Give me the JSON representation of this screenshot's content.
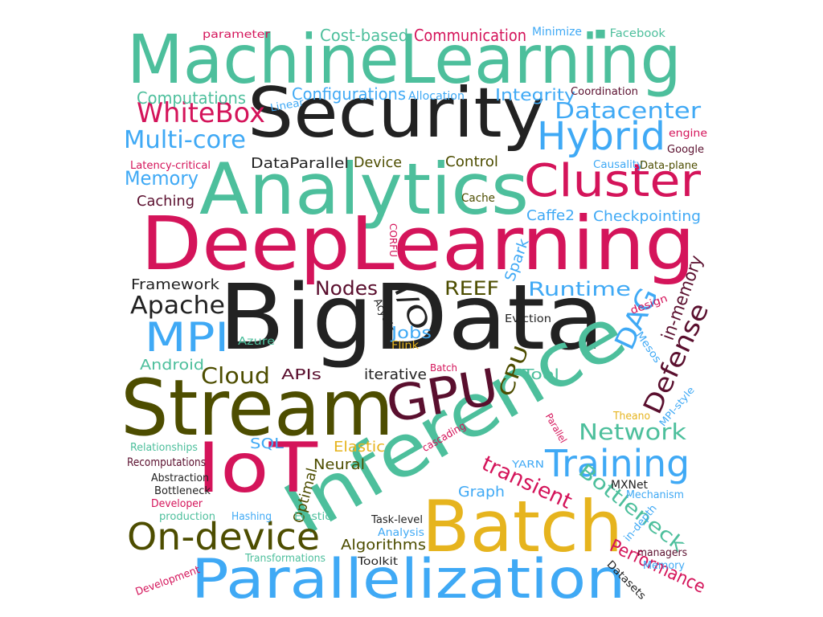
{
  "colors": {
    "teal": "#4dbf9c",
    "black": "#222222",
    "magenta": "#d4145a",
    "blue": "#3fa9f5",
    "olive": "#4d4d00",
    "maroon": "#5a0f2e",
    "gold": "#e6b41e"
  },
  "words": [
    {
      "id": "machinelearning",
      "text": "MachineLearning",
      "color": "teal"
    },
    {
      "id": "security",
      "text": "Security",
      "color": "black"
    },
    {
      "id": "analytics",
      "text": "Analytics",
      "color": "teal"
    },
    {
      "id": "deeplearning",
      "text": "DeepLearning",
      "color": "magenta"
    },
    {
      "id": "bigdata",
      "text": "BigData",
      "color": "black"
    },
    {
      "id": "stream",
      "text": "Stream",
      "color": "olive"
    },
    {
      "id": "inference",
      "text": "Inference",
      "color": "teal"
    },
    {
      "id": "batch",
      "text": "Batch",
      "color": "gold"
    },
    {
      "id": "parallelization",
      "text": "Parallelization",
      "color": "blue"
    },
    {
      "id": "iot",
      "text": "IoT",
      "color": "magenta"
    },
    {
      "id": "gpu",
      "text": "GPU",
      "color": "maroon"
    },
    {
      "id": "cluster",
      "text": "Cluster",
      "color": "magenta"
    },
    {
      "id": "hybrid",
      "text": "Hybrid",
      "color": "blue"
    },
    {
      "id": "mpi",
      "text": "MPI",
      "color": "blue"
    },
    {
      "id": "on-device",
      "text": "On-device",
      "color": "olive"
    },
    {
      "id": "training",
      "text": "Training",
      "color": "blue"
    },
    {
      "id": "whitebox",
      "text": "WhiteBox",
      "color": "magenta"
    },
    {
      "id": "multi-core",
      "text": "Multi-core",
      "color": "blue"
    },
    {
      "id": "datacenter",
      "text": "Datacenter",
      "color": "blue"
    },
    {
      "id": "apache",
      "text": "Apache",
      "color": "black"
    },
    {
      "id": "cloud",
      "text": "Cloud",
      "color": "olive"
    },
    {
      "id": "network",
      "text": "Network",
      "color": "teal"
    },
    {
      "id": "defense",
      "text": "Defense",
      "color": "maroon"
    },
    {
      "id": "dag",
      "text": "DAG",
      "color": "blue"
    },
    {
      "id": "bottleneck-big",
      "text": "Bottleneck",
      "color": "teal"
    },
    {
      "id": "transient",
      "text": "transient",
      "color": "magenta"
    },
    {
      "id": "memory",
      "text": "Memory",
      "color": "blue"
    },
    {
      "id": "nodes",
      "text": "Nodes",
      "color": "maroon"
    },
    {
      "id": "reef",
      "text": "REEF",
      "color": "olive"
    },
    {
      "id": "runtime",
      "text": "Runtime",
      "color": "blue"
    },
    {
      "id": "io",
      "text": "I/O",
      "color": "black"
    },
    {
      "id": "jobs",
      "text": "Jobs",
      "color": "blue"
    },
    {
      "id": "cpu",
      "text": "CPU",
      "color": "olive"
    },
    {
      "id": "in-memory",
      "text": "in-memory",
      "color": "maroon"
    },
    {
      "id": "performance",
      "text": "Performance",
      "color": "magenta"
    },
    {
      "id": "computations",
      "text": "Computations",
      "color": "teal"
    },
    {
      "id": "configurations",
      "text": "Configurations",
      "color": "blue"
    },
    {
      "id": "integrity",
      "text": "Integrity",
      "color": "blue"
    },
    {
      "id": "cost-based",
      "text": "Cost-based",
      "color": "teal"
    },
    {
      "id": "communication",
      "text": "Communication",
      "color": "magenta"
    },
    {
      "id": "minimize",
      "text": "Minimize",
      "color": "blue"
    },
    {
      "id": "facebook",
      "text": "■ Facebook",
      "color": "teal"
    },
    {
      "id": "parameter",
      "text": "parameter",
      "color": "magenta"
    },
    {
      "id": "allocation",
      "text": "Allocation",
      "color": "blue"
    },
    {
      "id": "coordination",
      "text": "Coordination",
      "color": "maroon"
    },
    {
      "id": "linear",
      "text": "Linear",
      "color": "blue"
    },
    {
      "id": "engine",
      "text": "engine",
      "color": "magenta"
    },
    {
      "id": "google",
      "text": "Google",
      "color": "maroon"
    },
    {
      "id": "latency",
      "text": "Latency-critical",
      "color": "magenta"
    },
    {
      "id": "dataparallel",
      "text": "DataParallel",
      "color": "black"
    },
    {
      "id": "device",
      "text": "Device",
      "color": "olive"
    },
    {
      "id": "control",
      "text": "Control",
      "color": "olive"
    },
    {
      "id": "causality",
      "text": "Causality",
      "color": "blue"
    },
    {
      "id": "data-plane",
      "text": "Data-plane",
      "color": "olive"
    },
    {
      "id": "caching",
      "text": "Caching",
      "color": "maroon"
    },
    {
      "id": "cache",
      "text": "Cache",
      "color": "olive"
    },
    {
      "id": "caffe2",
      "text": "Caffe2",
      "color": "blue"
    },
    {
      "id": "checkpointing",
      "text": "Checkpointing",
      "color": "blue"
    },
    {
      "id": "corfu",
      "text": "CORFU",
      "color": "magenta"
    },
    {
      "id": "spark",
      "text": "Spark",
      "color": "blue"
    },
    {
      "id": "framework",
      "text": "Framework",
      "color": "black"
    },
    {
      "id": "acyclic",
      "text": "Acyclic",
      "color": "black"
    },
    {
      "id": "eviction",
      "text": "Eviction",
      "color": "black"
    },
    {
      "id": "design",
      "text": "design",
      "color": "magenta"
    },
    {
      "id": "azure",
      "text": "Azure",
      "color": "teal"
    },
    {
      "id": "flink",
      "text": "Flink",
      "color": "gold"
    },
    {
      "id": "mesos",
      "text": "Mesos",
      "color": "blue"
    },
    {
      "id": "android",
      "text": "Android",
      "color": "teal"
    },
    {
      "id": "apis",
      "text": "APIs",
      "color": "maroon"
    },
    {
      "id": "iterative",
      "text": "iterative",
      "color": "black"
    },
    {
      "id": "batch-small",
      "text": "Batch",
      "color": "magenta"
    },
    {
      "id": "tool",
      "text": "Tool",
      "color": "teal"
    },
    {
      "id": "mpi-style",
      "text": "MPI-style",
      "color": "blue"
    },
    {
      "id": "theano",
      "text": "Theano",
      "color": "gold"
    },
    {
      "id": "relationships",
      "text": "Relationships",
      "color": "teal"
    },
    {
      "id": "sql",
      "text": "SQL",
      "color": "blue"
    },
    {
      "id": "elastic1",
      "text": "Elastic",
      "color": "gold"
    },
    {
      "id": "cascading",
      "text": "cascading",
      "color": "magenta"
    },
    {
      "id": "parallel",
      "text": "Parallel",
      "color": "magenta"
    },
    {
      "id": "recomputations",
      "text": "Recomputations",
      "color": "maroon"
    },
    {
      "id": "neural",
      "text": "Neural",
      "color": "olive"
    },
    {
      "id": "yarn",
      "text": "YARN",
      "color": "blue"
    },
    {
      "id": "abstraction",
      "text": "Abstraction",
      "color": "black"
    },
    {
      "id": "bottleneck-small",
      "text": "Bottleneck",
      "color": "black"
    },
    {
      "id": "developer",
      "text": "Developer",
      "color": "magenta"
    },
    {
      "id": "optimal",
      "text": "Optimal",
      "color": "olive"
    },
    {
      "id": "graph",
      "text": "Graph",
      "color": "blue"
    },
    {
      "id": "mxnet",
      "text": "MXNet",
      "color": "black"
    },
    {
      "id": "mechanism",
      "text": "Mechanism",
      "color": "blue"
    },
    {
      "id": "production",
      "text": "production",
      "color": "teal"
    },
    {
      "id": "hashing",
      "text": "Hashing",
      "color": "blue"
    },
    {
      "id": "elastic2",
      "text": "Elastic",
      "color": "teal"
    },
    {
      "id": "task-level",
      "text": "Task-level",
      "color": "black"
    },
    {
      "id": "analysis",
      "text": "Analysis",
      "color": "blue"
    },
    {
      "id": "algorithms",
      "text": "Algorithms",
      "color": "olive"
    },
    {
      "id": "in-depth",
      "text": "in-depth",
      "color": "blue"
    },
    {
      "id": "managers",
      "text": "managers",
      "color": "maroon"
    },
    {
      "id": "memory-small",
      "text": "Memory",
      "color": "blue"
    },
    {
      "id": "development",
      "text": "Development",
      "color": "magenta"
    },
    {
      "id": "transformations",
      "text": "Transformations",
      "color": "teal"
    },
    {
      "id": "toolkit",
      "text": "Toolkit",
      "color": "black"
    },
    {
      "id": "datasets",
      "text": "Datasets",
      "color": "black"
    }
  ]
}
